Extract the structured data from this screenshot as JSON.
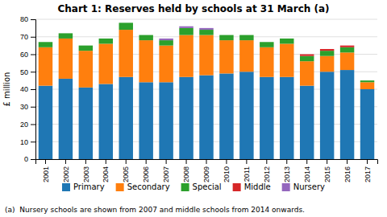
{
  "chart_data": {
    "type": "bar",
    "stacked": true,
    "title": "Chart 1: Reserves held by schools at 31 March (a)",
    "ylabel": "£ million",
    "categories": [
      "2001",
      "2002",
      "2003",
      "2004",
      "2005",
      "2006",
      "2007",
      "2008",
      "2009",
      "2010",
      "2011",
      "2012",
      "2013",
      "2014",
      "2015",
      "2016",
      "2017"
    ],
    "series": [
      {
        "name": "Primary",
        "values": [
          42,
          46,
          41,
          43,
          47,
          44,
          44,
          47,
          48,
          49,
          50,
          47,
          47,
          42,
          50,
          51,
          40
        ]
      },
      {
        "name": "Secondary",
        "values": [
          22,
          23,
          21,
          23,
          27,
          24,
          21,
          24,
          23,
          19,
          18,
          17,
          19,
          14,
          9,
          10,
          4
        ]
      },
      {
        "name": "Special",
        "values": [
          3,
          3,
          3,
          3,
          4,
          3,
          3,
          4,
          3,
          3,
          3,
          3,
          3,
          3,
          3,
          3,
          1
        ]
      },
      {
        "name": "Middle",
        "values": [
          0,
          0,
          0,
          0,
          0,
          0,
          0,
          0,
          0,
          0,
          0,
          0,
          0,
          1,
          1,
          1,
          0
        ]
      },
      {
        "name": "Nursery",
        "values": [
          0,
          0,
          0,
          0,
          0,
          0,
          1,
          1,
          1,
          0,
          0,
          0,
          0,
          0,
          0,
          0,
          0
        ]
      }
    ],
    "ylim": [
      0,
      80
    ],
    "yticks": [
      0,
      10,
      20,
      30,
      40,
      50,
      60,
      70,
      80
    ],
    "grid": true,
    "legend": "bottom",
    "annotations": [
      "(a)  Nursery schools are shown from 2007 and middle schools from 2014 onwards."
    ]
  }
}
